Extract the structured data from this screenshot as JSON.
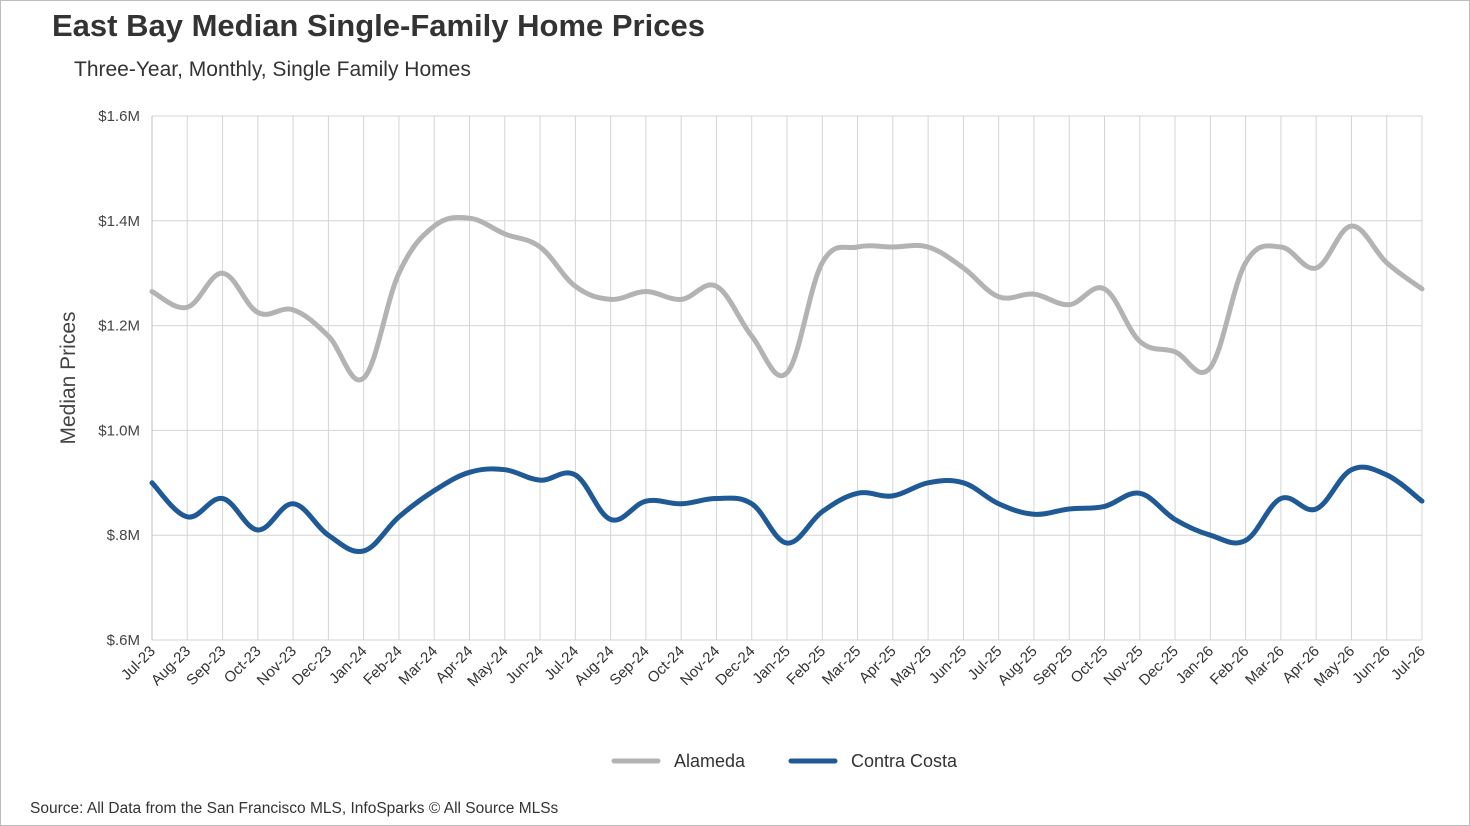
{
  "title": "East Bay Median Single-Family Home Prices",
  "subtitle": "Three-Year, Monthly, Single Family Homes",
  "source": "Source: All Data from the San Francisco MLS, InfoSparks © All Source MLSs",
  "chart_data": {
    "type": "line",
    "ylabel": "Median Prices",
    "xlabel": "",
    "ylim": [
      0.6,
      1.6
    ],
    "y_ticks": [
      0.6,
      0.8,
      1.0,
      1.2,
      1.4,
      1.6
    ],
    "y_tick_labels": [
      "$.6M",
      "$.8M",
      "$1.0M",
      "$1.2M",
      "$1.4M",
      "$1.6M"
    ],
    "grid": true,
    "legend_position": "bottom-center",
    "categories": [
      "Jul-23",
      "Aug-23",
      "Sep-23",
      "Oct-23",
      "Nov-23",
      "Dec-23",
      "Jan-24",
      "Feb-24",
      "Mar-24",
      "Apr-24",
      "May-24",
      "Jun-24",
      "Jul-24",
      "Aug-24",
      "Sep-24",
      "Oct-24",
      "Nov-24",
      "Dec-24",
      "Jan-25",
      "Feb-25",
      "Mar-25",
      "Apr-25",
      "May-25",
      "Jun-25",
      "Jul-25",
      "Aug-25",
      "Sep-25",
      "Oct-25",
      "Nov-25",
      "Dec-25",
      "Jan-26",
      "Feb-26",
      "Mar-26",
      "Apr-26",
      "May-26",
      "Jun-26",
      "Jul-26"
    ],
    "series": [
      {
        "name": "Alameda",
        "color": "#b3b3b3",
        "values": [
          1.265,
          1.235,
          1.3,
          1.225,
          1.23,
          1.18,
          1.1,
          1.3,
          1.39,
          1.405,
          1.375,
          1.35,
          1.275,
          1.25,
          1.265,
          1.25,
          1.275,
          1.18,
          1.11,
          1.32,
          1.35,
          1.35,
          1.35,
          1.31,
          1.255,
          1.26,
          1.24,
          1.27,
          1.17,
          1.15,
          1.12,
          1.32,
          1.35,
          1.31,
          1.39,
          1.32,
          1.27
        ]
      },
      {
        "name": "Contra Costa",
        "color": "#1f5a96",
        "values": [
          0.9,
          0.835,
          0.87,
          0.81,
          0.86,
          0.8,
          0.77,
          0.835,
          0.885,
          0.92,
          0.925,
          0.905,
          0.915,
          0.83,
          0.865,
          0.86,
          0.87,
          0.86,
          0.785,
          0.845,
          0.88,
          0.875,
          0.9,
          0.9,
          0.86,
          0.84,
          0.85,
          0.855,
          0.88,
          0.83,
          0.8,
          0.79,
          0.87,
          0.85,
          0.925,
          0.915,
          0.865
        ]
      }
    ]
  }
}
